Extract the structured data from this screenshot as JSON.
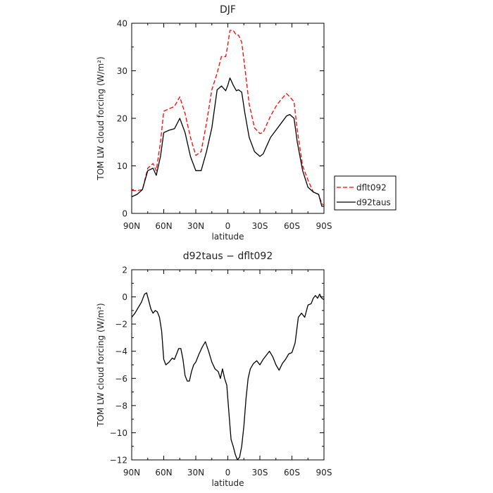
{
  "chart_data": [
    {
      "type": "line",
      "title": "DJF",
      "xlabel": "latitude",
      "ylabel": "TOM LW cloud forcing (W/m²)",
      "xlim": [
        90,
        -90
      ],
      "ylim": [
        0,
        40
      ],
      "xticks": [
        90,
        60,
        30,
        0,
        -30,
        -60,
        -90
      ],
      "xtick_labels": [
        "90N",
        "60N",
        "30N",
        "0",
        "30S",
        "60S",
        "90S"
      ],
      "yticks": [
        0,
        10,
        20,
        30,
        40
      ],
      "ytick_labels": [
        "0",
        "10",
        "20",
        "30",
        "40"
      ],
      "legend": "right",
      "x": [
        90,
        85,
        80,
        75,
        70,
        67,
        63,
        60,
        55,
        50,
        45,
        40,
        35,
        30,
        25,
        20,
        15,
        10,
        6,
        2,
        0,
        -2,
        -5,
        -8,
        -10,
        -13,
        -16,
        -20,
        -25,
        -30,
        -33,
        -36,
        -40,
        -45,
        -50,
        -55,
        -58,
        -62,
        -65,
        -70,
        -75,
        -80,
        -85,
        -88,
        -90
      ],
      "series": [
        {
          "name": "dflt092",
          "color": "#ff0000",
          "dash": true,
          "values": [
            4.8,
            4.8,
            5.0,
            9.5,
            10.5,
            9.0,
            15.0,
            21.5,
            22.0,
            22.5,
            24.5,
            21.0,
            16.0,
            12.2,
            13.0,
            19.0,
            26.0,
            29.5,
            33.0,
            33.0,
            35.5,
            38.5,
            38.5,
            37.5,
            37.5,
            36.0,
            30.5,
            23.0,
            18.0,
            16.8,
            17.0,
            18.5,
            20.5,
            22.5,
            24.0,
            25.2,
            24.5,
            23.5,
            17.5,
            10.0,
            7.0,
            4.5,
            4.0,
            2.0,
            1.8
          ]
        },
        {
          "name": "d92taus",
          "color": "#000000",
          "dash": false,
          "values": [
            3.5,
            4.0,
            5.0,
            9.0,
            9.5,
            8.0,
            12.0,
            17.0,
            17.5,
            17.8,
            20.0,
            17.0,
            12.0,
            9.0,
            9.0,
            13.0,
            18.0,
            26.0,
            26.8,
            25.8,
            27.0,
            28.5,
            27.0,
            25.8,
            26.0,
            25.5,
            21.0,
            16.0,
            13.0,
            12.0,
            12.5,
            14.0,
            16.0,
            17.5,
            19.0,
            20.5,
            20.8,
            20.0,
            15.0,
            9.0,
            5.5,
            4.5,
            4.0,
            1.5,
            1.5
          ]
        }
      ]
    },
    {
      "type": "line",
      "title": "d92taus − dflt092",
      "xlabel": "latitude",
      "ylabel": "TOM LW cloud forcing (W/m²)",
      "xlim": [
        90,
        -90
      ],
      "ylim": [
        -12,
        2
      ],
      "xticks": [
        90,
        60,
        30,
        0,
        -30,
        -60,
        -90
      ],
      "xtick_labels": [
        "90N",
        "60N",
        "30N",
        "0",
        "30S",
        "60S",
        "90S"
      ],
      "yticks": [
        2,
        0,
        -2,
        -4,
        -6,
        -8,
        -10,
        -12
      ],
      "ytick_labels": [
        "2",
        "0",
        "−2",
        "−4",
        "−6",
        "−8",
        "−10",
        "−12"
      ],
      "x": [
        90,
        87,
        84,
        81,
        78,
        76,
        74,
        72,
        70,
        68,
        66,
        64,
        62,
        60,
        58,
        55,
        52,
        50,
        48,
        46,
        44,
        42,
        40,
        38,
        36,
        34,
        32,
        30,
        27,
        24,
        21,
        18,
        15,
        12,
        9,
        7,
        5,
        3,
        1,
        0,
        -1,
        -2,
        -3,
        -5,
        -7,
        -9,
        -11,
        -13,
        -15,
        -17,
        -19,
        -21,
        -24,
        -27,
        -30,
        -33,
        -36,
        -39,
        -42,
        -45,
        -48,
        -51,
        -54,
        -57,
        -60,
        -63,
        -66,
        -69,
        -72,
        -75,
        -78,
        -80,
        -82,
        -84,
        -86,
        -88,
        -90
      ],
      "series": [
        {
          "color": "#000000",
          "values": [
            -1.5,
            -1.2,
            -0.8,
            -0.4,
            0.2,
            0.3,
            -0.3,
            -0.9,
            -1.2,
            -1.0,
            -1.1,
            -1.5,
            -2.5,
            -4.6,
            -5.0,
            -4.8,
            -4.5,
            -4.6,
            -4.2,
            -3.8,
            -3.8,
            -4.6,
            -5.8,
            -6.2,
            -6.2,
            -5.5,
            -5.0,
            -4.8,
            -4.2,
            -3.7,
            -3.3,
            -4.0,
            -4.8,
            -5.3,
            -5.5,
            -6.0,
            -5.3,
            -6.0,
            -6.5,
            -7.5,
            -8.5,
            -9.5,
            -10.5,
            -11.0,
            -11.6,
            -12.0,
            -11.8,
            -11.0,
            -9.5,
            -7.5,
            -6.0,
            -5.3,
            -4.9,
            -4.7,
            -5.0,
            -4.6,
            -4.3,
            -4.0,
            -4.4,
            -5.0,
            -5.4,
            -4.9,
            -4.6,
            -4.2,
            -4.1,
            -3.4,
            -1.5,
            -1.2,
            -1.5,
            -0.6,
            -0.5,
            -0.1,
            0.1,
            -0.1,
            0.2,
            -0.1,
            -0.2
          ]
        }
      ]
    }
  ]
}
